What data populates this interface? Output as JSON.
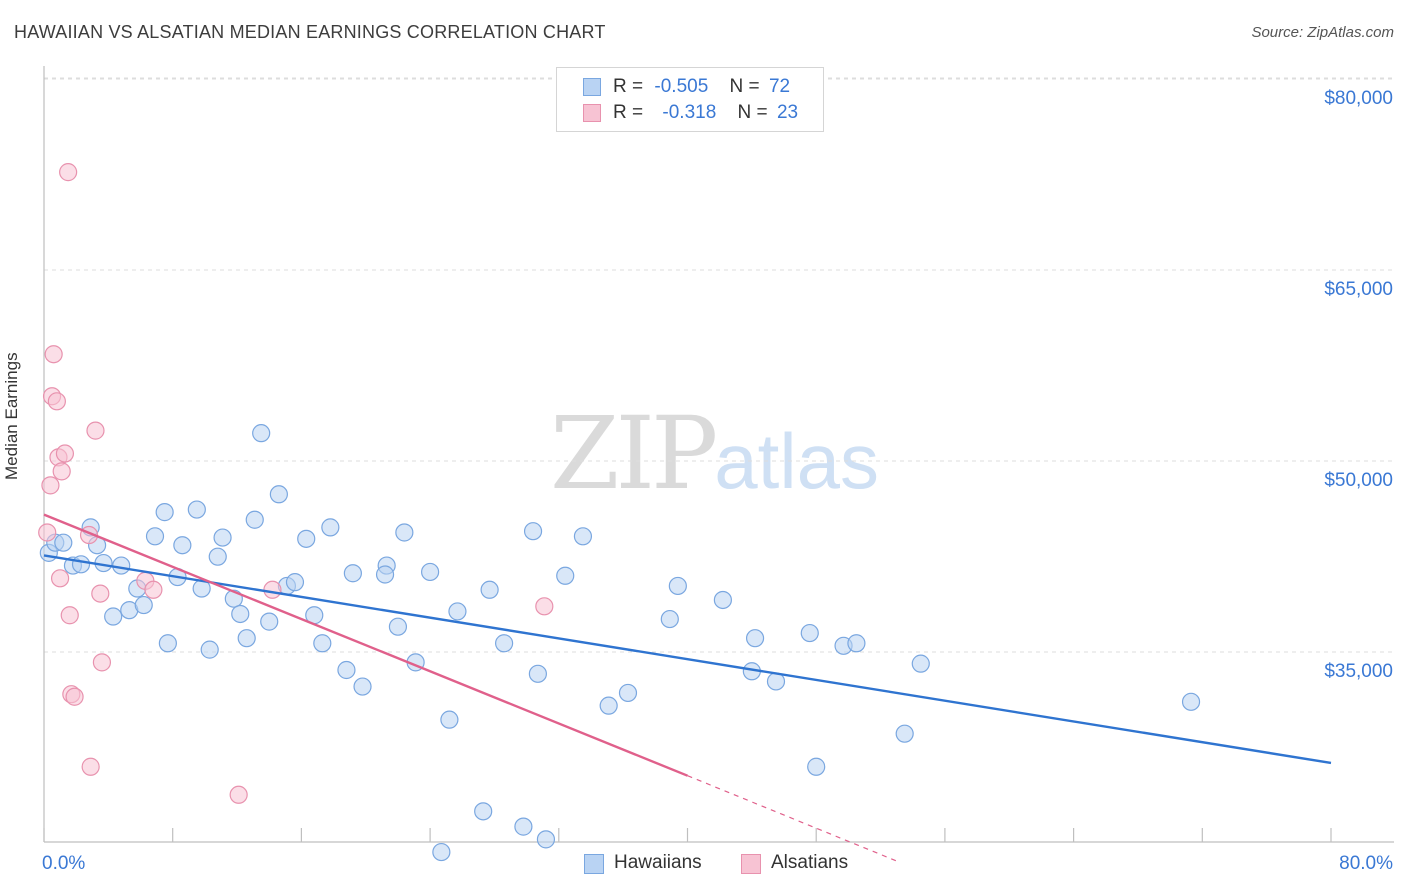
{
  "title": "HAWAIIAN VS ALSATIAN MEDIAN EARNINGS CORRELATION CHART",
  "source": "Source: ZipAtlas.com",
  "legend": {
    "r_label": "R =",
    "n_label": "N =",
    "series1": {
      "r": "-0.505",
      "n": "72"
    },
    "series2": {
      "r": "-0.318",
      "n": "23"
    }
  },
  "bottom_legend": {
    "hawaiians": "Hawaiians",
    "alsatians": "Alsatians"
  },
  "watermark": {
    "zip": "ZIP",
    "atlas": "atlas"
  },
  "colors": {
    "blue_fill": "#b9d3f3",
    "blue_stroke": "#7aa7e0",
    "blue_line": "#2f74d0",
    "pink_fill": "#f7c3d3",
    "pink_stroke": "#e892ae",
    "pink_line": "#e0608b",
    "tick_label": "#3a78d4",
    "grid": "#dddddd"
  },
  "chart_data": {
    "type": "scatter",
    "title": "HAWAIIAN VS ALSATIAN MEDIAN EARNINGS CORRELATION CHART",
    "xlabel": "",
    "ylabel": "Median Earnings",
    "xlim": [
      0,
      80
    ],
    "ylim": [
      20000,
      82500
    ],
    "x_tick_labels": [
      "0.0%",
      "80.0%"
    ],
    "y_ticks": [
      35000,
      50000,
      65000,
      80000
    ],
    "y_tick_labels": [
      "$35,000",
      "$50,000",
      "$65,000",
      "$80,000"
    ],
    "grid": true,
    "legend_position": "top-center",
    "series": [
      {
        "name": "Hawaiians",
        "r": -0.505,
        "n": 72,
        "trend": {
          "x": [
            0,
            80
          ],
          "y": [
            44000,
            27700
          ]
        },
        "points": [
          [
            0.3,
            44200
          ],
          [
            0.7,
            45000
          ],
          [
            1.2,
            45000
          ],
          [
            1.8,
            43200
          ],
          [
            2.3,
            43300
          ],
          [
            2.9,
            46200
          ],
          [
            3.3,
            44800
          ],
          [
            3.7,
            43400
          ],
          [
            4.3,
            39200
          ],
          [
            4.8,
            43200
          ],
          [
            5.3,
            39700
          ],
          [
            5.8,
            41400
          ],
          [
            6.2,
            40100
          ],
          [
            6.9,
            45500
          ],
          [
            7.5,
            47400
          ],
          [
            7.7,
            37100
          ],
          [
            8.3,
            42300
          ],
          [
            8.6,
            44800
          ],
          [
            9.5,
            47600
          ],
          [
            9.8,
            41400
          ],
          [
            10.3,
            36600
          ],
          [
            10.8,
            43900
          ],
          [
            11.1,
            45400
          ],
          [
            11.8,
            40600
          ],
          [
            12.2,
            39400
          ],
          [
            12.6,
            37500
          ],
          [
            13.1,
            46800
          ],
          [
            13.5,
            53600
          ],
          [
            14.0,
            38800
          ],
          [
            14.6,
            48800
          ],
          [
            15.1,
            41600
          ],
          [
            15.6,
            41900
          ],
          [
            16.3,
            45300
          ],
          [
            16.8,
            39300
          ],
          [
            17.3,
            37100
          ],
          [
            17.8,
            46200
          ],
          [
            18.8,
            35000
          ],
          [
            19.2,
            42600
          ],
          [
            19.8,
            33700
          ],
          [
            21.3,
            43200
          ],
          [
            21.2,
            42500
          ],
          [
            22.0,
            38400
          ],
          [
            22.4,
            45800
          ],
          [
            23.1,
            35600
          ],
          [
            24.0,
            42700
          ],
          [
            24.7,
            20700
          ],
          [
            25.2,
            31100
          ],
          [
            25.7,
            39600
          ],
          [
            27.3,
            23900
          ],
          [
            27.7,
            41300
          ],
          [
            28.6,
            37100
          ],
          [
            29.8,
            22700
          ],
          [
            30.4,
            45900
          ],
          [
            30.7,
            34700
          ],
          [
            31.2,
            21700
          ],
          [
            32.4,
            42400
          ],
          [
            33.5,
            45500
          ],
          [
            35.1,
            32200
          ],
          [
            36.3,
            33200
          ],
          [
            38.9,
            39000
          ],
          [
            39.4,
            41600
          ],
          [
            42.2,
            40500
          ],
          [
            44.0,
            34900
          ],
          [
            44.2,
            37500
          ],
          [
            45.5,
            34100
          ],
          [
            47.6,
            37900
          ],
          [
            48.0,
            27400
          ],
          [
            49.7,
            36900
          ],
          [
            50.5,
            37100
          ],
          [
            53.5,
            30000
          ],
          [
            54.5,
            35500
          ],
          [
            71.3,
            32500
          ]
        ]
      },
      {
        "name": "Alsatians",
        "r": -0.318,
        "n": 23,
        "trend": {
          "x": [
            0,
            40
          ],
          "y": [
            47200,
            26700
          ]
        },
        "trend_dashed": {
          "x": [
            40,
            53
          ],
          "y": [
            26700,
            20000
          ]
        },
        "points": [
          [
            0.2,
            45800
          ],
          [
            0.4,
            49500
          ],
          [
            0.5,
            56500
          ],
          [
            0.6,
            59800
          ],
          [
            0.8,
            56100
          ],
          [
            0.9,
            51700
          ],
          [
            1.0,
            42200
          ],
          [
            1.1,
            50600
          ],
          [
            1.3,
            52000
          ],
          [
            1.5,
            74100
          ],
          [
            1.6,
            39300
          ],
          [
            1.7,
            33100
          ],
          [
            1.9,
            32900
          ],
          [
            2.8,
            45600
          ],
          [
            2.9,
            27400
          ],
          [
            3.2,
            53800
          ],
          [
            3.5,
            41000
          ],
          [
            3.6,
            35600
          ],
          [
            6.3,
            42000
          ],
          [
            6.8,
            41300
          ],
          [
            12.1,
            25200
          ],
          [
            14.2,
            41300
          ],
          [
            31.1,
            40000
          ]
        ]
      }
    ]
  }
}
